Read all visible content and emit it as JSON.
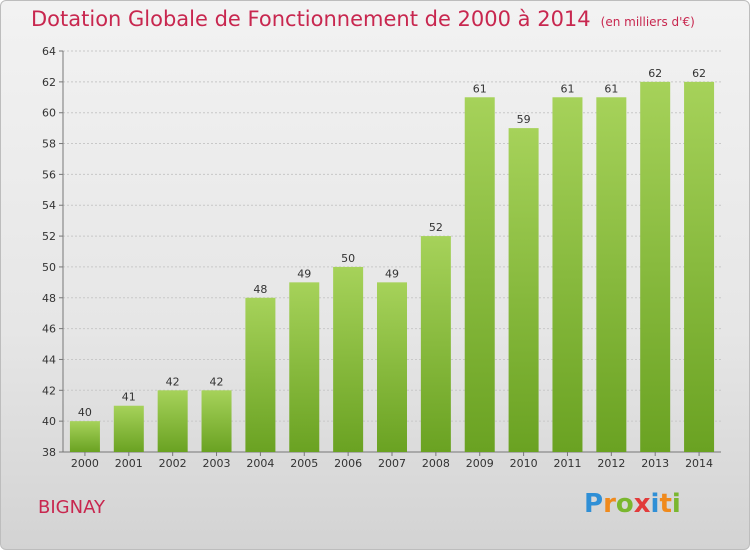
{
  "title": "Dotation Globale de Fonctionnement de 2000 à 2014",
  "unit_note": "(en milliers d'€)",
  "city": "BIGNAY",
  "logo": {
    "text": "Proxiti",
    "letters": [
      {
        "ch": "P",
        "color": "#2f8fd6"
      },
      {
        "ch": "r",
        "color": "#f08a1c"
      },
      {
        "ch": "o",
        "color": "#7ab72f"
      },
      {
        "ch": "x",
        "color": "#e23b3b"
      },
      {
        "ch": "i",
        "color": "#2f8fd6"
      },
      {
        "ch": "t",
        "color": "#f08a1c"
      },
      {
        "ch": "i",
        "color": "#7ab72f"
      }
    ]
  },
  "colors": {
    "title": "#c8274f",
    "bar_light": "#a6d25a",
    "bar_dark": "#6aa222",
    "grid": "#c8c8c8",
    "axis_text": "#333333"
  },
  "chart_data": {
    "type": "bar",
    "title": "Dotation Globale de Fonctionnement de 2000 à 2014",
    "categories": [
      "2000",
      "2001",
      "2002",
      "2003",
      "2004",
      "2005",
      "2006",
      "2007",
      "2008",
      "2009",
      "2010",
      "2011",
      "2012",
      "2013",
      "2014"
    ],
    "values": [
      40,
      41,
      42,
      42,
      48,
      49,
      50,
      49,
      52,
      61,
      59,
      61,
      61,
      62,
      62
    ],
    "ylim": [
      38,
      64
    ],
    "yticks": [
      38,
      40,
      42,
      44,
      46,
      48,
      50,
      52,
      54,
      56,
      58,
      60,
      62,
      64
    ],
    "grid": true,
    "xlabel": "",
    "ylabel": ""
  }
}
